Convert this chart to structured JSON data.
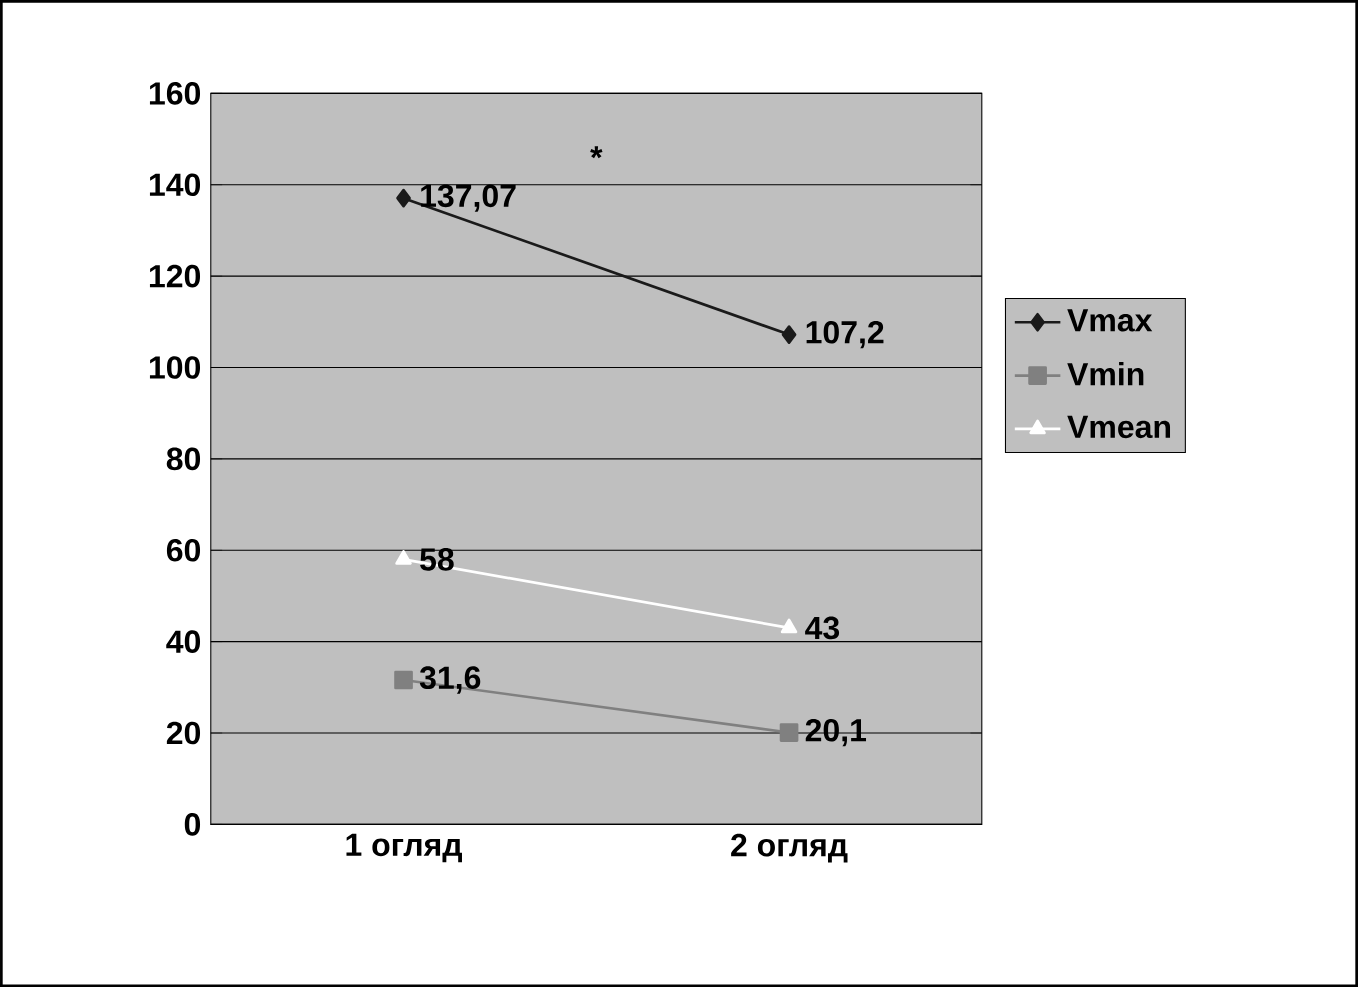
{
  "chart_data": {
    "type": "line",
    "categories": [
      "1 огляд",
      "2 огляд"
    ],
    "series": [
      {
        "name": "Vmax",
        "color": "#1a1a1a",
        "marker": "diamond",
        "values": [
          137.07,
          107.2
        ],
        "value_labels": [
          "137,07",
          "107,2"
        ]
      },
      {
        "name": "Vmin",
        "color": "#808080",
        "marker": "square",
        "values": [
          31.6,
          20.1
        ],
        "value_labels": [
          "31,6",
          "20,1"
        ]
      },
      {
        "name": "Vmean",
        "color": "#ffffff",
        "marker": "triangle",
        "values": [
          58,
          43
        ],
        "value_labels": [
          "58",
          "43"
        ]
      }
    ],
    "ylim": [
      0,
      160
    ],
    "yticks": [
      0,
      20,
      40,
      60,
      80,
      100,
      120,
      140,
      160
    ],
    "grid": "y",
    "legend": "right",
    "annotations": [
      "*"
    ]
  }
}
